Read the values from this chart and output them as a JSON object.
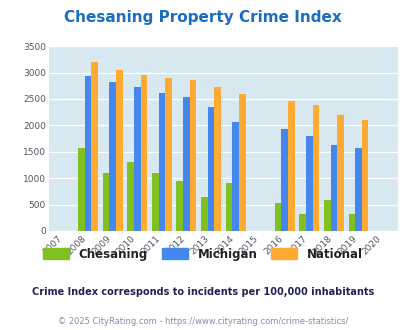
{
  "title": "Chesaning Property Crime Index",
  "title_color": "#1a6ec0",
  "years": [
    2007,
    2008,
    2009,
    2010,
    2011,
    2012,
    2013,
    2014,
    2015,
    2016,
    2017,
    2018,
    2019,
    2020
  ],
  "chesaning": [
    0,
    1575,
    1100,
    1310,
    1100,
    950,
    650,
    910,
    0,
    530,
    325,
    590,
    330,
    0
  ],
  "michigan": [
    0,
    2930,
    2830,
    2720,
    2610,
    2540,
    2340,
    2055,
    0,
    1930,
    1800,
    1630,
    1570,
    0
  ],
  "national": [
    0,
    3200,
    3040,
    2950,
    2900,
    2860,
    2720,
    2590,
    0,
    2470,
    2380,
    2200,
    2110,
    0
  ],
  "chesaning_color": "#80c020",
  "michigan_color": "#4488ee",
  "national_color": "#ffaa33",
  "bg_color": "#d8e8f0",
  "ylim": [
    0,
    3500
  ],
  "yticks": [
    0,
    500,
    1000,
    1500,
    2000,
    2500,
    3000,
    3500
  ],
  "legend_labels": [
    "Chesaning",
    "Michigan",
    "National"
  ],
  "legend_text_color": "#222222",
  "footnote1": "Crime Index corresponds to incidents per 100,000 inhabitants",
  "footnote2": "© 2025 CityRating.com - https://www.cityrating.com/crime-statistics/",
  "footnote1_color": "#222255",
  "footnote2_color": "#8888aa"
}
